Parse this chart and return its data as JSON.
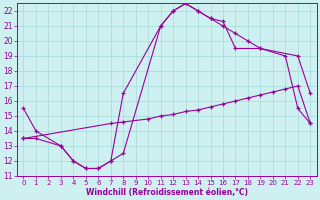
{
  "xlabel": "Windchill (Refroidissement éolien,°C)",
  "bg_color": "#cff0f0",
  "line_color": "#990099",
  "grid_color": "#aadddd",
  "xlim": [
    -0.5,
    23.5
  ],
  "ylim": [
    11,
    22.5
  ],
  "xticks": [
    0,
    1,
    2,
    3,
    4,
    5,
    6,
    7,
    8,
    9,
    10,
    11,
    12,
    13,
    14,
    15,
    16,
    17,
    18,
    19,
    20,
    21,
    22,
    23
  ],
  "yticks": [
    11,
    12,
    13,
    14,
    15,
    16,
    17,
    18,
    19,
    20,
    21,
    22
  ],
  "line1_x": [
    0,
    1,
    3,
    4,
    5,
    6,
    7,
    8,
    11,
    12,
    13,
    14,
    15,
    16,
    17,
    19,
    22,
    23
  ],
  "line1_y": [
    15.5,
    14.0,
    13.0,
    12.0,
    11.5,
    11.5,
    12.0,
    16.5,
    21.0,
    22.0,
    22.5,
    22.0,
    21.5,
    21.3,
    19.5,
    19.5,
    19.0,
    16.5
  ],
  "line2_x": [
    0,
    1,
    3,
    4,
    5,
    6,
    7,
    8,
    11,
    12,
    13,
    14,
    15,
    16,
    17,
    18,
    19,
    21,
    22,
    23
  ],
  "line2_y": [
    13.5,
    13.5,
    13.0,
    12.0,
    11.5,
    11.5,
    12.0,
    12.5,
    21.0,
    22.0,
    22.5,
    22.0,
    21.5,
    21.0,
    20.5,
    20.0,
    19.5,
    19.0,
    15.5,
    14.5
  ],
  "line3_x": [
    0,
    7,
    8,
    10,
    11,
    12,
    13,
    14,
    15,
    16,
    17,
    18,
    19,
    20,
    21,
    22,
    23
  ],
  "line3_y": [
    13.5,
    14.5,
    14.6,
    14.8,
    15.0,
    15.1,
    15.3,
    15.4,
    15.6,
    15.8,
    16.0,
    16.2,
    16.4,
    16.6,
    16.8,
    17.0,
    14.5
  ]
}
